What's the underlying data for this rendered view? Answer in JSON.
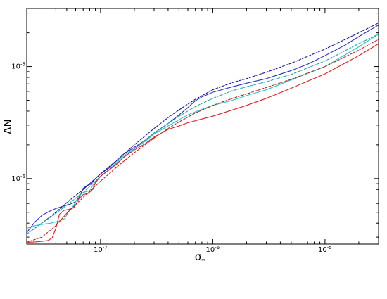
{
  "chart_data": {
    "type": "line",
    "title": "",
    "xlabel_main": "σ",
    "xlabel_sub": "*",
    "ylabel": "ΔN",
    "xscale": "log",
    "yscale": "log",
    "xlim": [
      2.2e-08,
      3e-05
    ],
    "ylim": [
      2.6e-07,
      3.3e-05
    ],
    "grid": false,
    "x_ticks": [
      {
        "value": 1e-07,
        "base": "10",
        "exp": "-7"
      },
      {
        "value": 1e-06,
        "base": "10",
        "exp": "-6"
      },
      {
        "value": 1e-05,
        "base": "10",
        "exp": "-5"
      }
    ],
    "y_ticks": [
      {
        "value": 1e-06,
        "base": "10",
        "exp": "-6"
      },
      {
        "value": 1e-05,
        "base": "10",
        "exp": "-5"
      }
    ],
    "series": [
      {
        "color": "#3030cc",
        "style": "solid",
        "points": [
          [
            2.2e-08,
            3.3e-07
          ],
          [
            2.6e-08,
            4.1e-07
          ],
          [
            3e-08,
            4.7e-07
          ],
          [
            3.5e-08,
            5.1e-07
          ],
          [
            4e-08,
            5.4e-07
          ],
          [
            4.6e-08,
            5.65e-07
          ],
          [
            5.2e-08,
            5.85e-07
          ],
          [
            5.8e-08,
            6.1e-07
          ],
          [
            6.4e-08,
            6.7e-07
          ],
          [
            7e-08,
            8.2e-07
          ],
          [
            7.6e-08,
            8.7e-07
          ],
          [
            8.2e-08,
            8.9e-07
          ],
          [
            9e-08,
            1e-06
          ],
          [
            1e-07,
            1.1e-06
          ],
          [
            1.2e-07,
            1.25e-06
          ],
          [
            1.4e-07,
            1.45e-06
          ],
          [
            1.6e-07,
            1.65e-06
          ],
          [
            2e-07,
            1.9e-06
          ],
          [
            2.5e-07,
            2.2e-06
          ],
          [
            3e-07,
            2.55e-06
          ],
          [
            4e-07,
            3.1e-06
          ],
          [
            5e-07,
            3.7e-06
          ],
          [
            6e-07,
            4.3e-06
          ],
          [
            7e-07,
            4.95e-06
          ],
          [
            8e-07,
            5.35e-06
          ],
          [
            1e-06,
            5.9e-06
          ],
          [
            1.5e-06,
            6.6e-06
          ],
          [
            2e-06,
            7.1e-06
          ],
          [
            3e-06,
            7.8e-06
          ],
          [
            5e-06,
            9.2e-06
          ],
          [
            7e-06,
            1.05e-05
          ],
          [
            1e-05,
            1.25e-05
          ],
          [
            1.5e-05,
            1.55e-05
          ],
          [
            2e-05,
            1.85e-05
          ],
          [
            3e-05,
            2.35e-05
          ]
        ]
      },
      {
        "color": "#1a1a99",
        "style": "dashed",
        "points": [
          [
            2.2e-08,
            3.2e-07
          ],
          [
            3e-08,
            4e-07
          ],
          [
            4e-08,
            5e-07
          ],
          [
            5e-08,
            6.1e-07
          ],
          [
            7e-08,
            8e-07
          ],
          [
            1e-07,
            1.1e-06
          ],
          [
            1.5e-07,
            1.55e-06
          ],
          [
            2e-07,
            2e-06
          ],
          [
            3e-07,
            2.8e-06
          ],
          [
            4e-07,
            3.5e-06
          ],
          [
            5e-07,
            4.1e-06
          ],
          [
            7e-07,
            5.1e-06
          ],
          [
            1e-06,
            6.2e-06
          ],
          [
            1.5e-06,
            7.2e-06
          ],
          [
            2e-06,
            7.8e-06
          ],
          [
            3e-06,
            8.9e-06
          ],
          [
            5e-06,
            1.07e-05
          ],
          [
            1e-05,
            1.43e-05
          ],
          [
            2e-05,
            2e-05
          ],
          [
            3e-05,
            2.45e-05
          ]
        ]
      },
      {
        "color": "#20c8c8",
        "style": "solid",
        "points": [
          [
            2.2e-08,
            3.6e-07
          ],
          [
            2.6e-08,
            3.8e-07
          ],
          [
            3e-08,
            3.9e-07
          ],
          [
            3.6e-08,
            4e-07
          ],
          [
            4.2e-08,
            4.15e-07
          ],
          [
            4.8e-08,
            4.4e-07
          ],
          [
            5.2e-08,
            5.1e-07
          ],
          [
            5.6e-08,
            5.5e-07
          ],
          [
            6e-08,
            6.2e-07
          ],
          [
            6.5e-08,
            7.2e-07
          ],
          [
            7e-08,
            7.5e-07
          ],
          [
            8e-08,
            7.8e-07
          ],
          [
            9e-08,
            9.5e-07
          ],
          [
            1e-07,
            1.05e-06
          ],
          [
            1.2e-07,
            1.2e-06
          ],
          [
            1.4e-07,
            1.4e-06
          ],
          [
            1.6e-07,
            1.6e-06
          ],
          [
            2e-07,
            1.85e-06
          ],
          [
            2.5e-07,
            2.15e-06
          ],
          [
            3e-07,
            2.5e-06
          ],
          [
            4e-07,
            2.95e-06
          ],
          [
            5e-07,
            3.35e-06
          ],
          [
            6e-07,
            3.7e-06
          ],
          [
            8e-07,
            4.15e-06
          ],
          [
            1e-06,
            4.5e-06
          ],
          [
            1.5e-06,
            5e-06
          ],
          [
            2e-06,
            5.5e-06
          ],
          [
            3e-06,
            6.2e-06
          ],
          [
            5e-06,
            7.6e-06
          ],
          [
            1e-05,
            1e-05
          ],
          [
            2e-05,
            1.5e-05
          ],
          [
            3e-05,
            1.95e-05
          ]
        ]
      },
      {
        "color": "#20a8a8",
        "style": "dashed",
        "points": [
          [
            2.2e-08,
            3.2e-07
          ],
          [
            3e-08,
            4e-07
          ],
          [
            4e-08,
            4.9e-07
          ],
          [
            5e-08,
            5.8e-07
          ],
          [
            7e-08,
            7.5e-07
          ],
          [
            1e-07,
            1.05e-06
          ],
          [
            1.5e-07,
            1.45e-06
          ],
          [
            2e-07,
            1.85e-06
          ],
          [
            3e-07,
            2.55e-06
          ],
          [
            4e-07,
            3.1e-06
          ],
          [
            5e-07,
            3.6e-06
          ],
          [
            7e-07,
            4.4e-06
          ],
          [
            1e-06,
            5.2e-06
          ],
          [
            1.5e-06,
            6.1e-06
          ],
          [
            2e-06,
            6.6e-06
          ],
          [
            3e-06,
            7.3e-06
          ],
          [
            5e-06,
            8.5e-06
          ],
          [
            1e-05,
            1.12e-05
          ],
          [
            2e-05,
            1.6e-05
          ],
          [
            3e-05,
            1.95e-05
          ]
        ]
      },
      {
        "color": "#e02020",
        "style": "solid",
        "points": [
          [
            2.2e-08,
            2.7e-07
          ],
          [
            2.6e-08,
            2.72e-07
          ],
          [
            3e-08,
            2.75e-07
          ],
          [
            3.4e-08,
            2.8e-07
          ],
          [
            3.7e-08,
            2.95e-07
          ],
          [
            4e-08,
            3.6e-07
          ],
          [
            4.3e-08,
            4.8e-07
          ],
          [
            4.7e-08,
            5.2e-07
          ],
          [
            5.2e-08,
            5.3e-07
          ],
          [
            5.8e-08,
            5.5e-07
          ],
          [
            6.4e-08,
            6.6e-07
          ],
          [
            7e-08,
            7.2e-07
          ],
          [
            7.8e-08,
            7.4e-07
          ],
          [
            8.5e-08,
            8e-07
          ],
          [
            9e-08,
            9.2e-07
          ],
          [
            1e-07,
            1.05e-06
          ],
          [
            1.2e-07,
            1.2e-06
          ],
          [
            1.4e-07,
            1.35e-06
          ],
          [
            1.6e-07,
            1.55e-06
          ],
          [
            2e-07,
            1.8e-06
          ],
          [
            2.5e-07,
            2.05e-06
          ],
          [
            3e-07,
            2.35e-06
          ],
          [
            4e-07,
            2.75e-06
          ],
          [
            5e-07,
            2.95e-06
          ],
          [
            6e-07,
            3.15e-06
          ],
          [
            8e-07,
            3.4e-06
          ],
          [
            1e-06,
            3.6e-06
          ],
          [
            1.5e-06,
            4.1e-06
          ],
          [
            2e-06,
            4.5e-06
          ],
          [
            3e-06,
            5.2e-06
          ],
          [
            5e-06,
            6.4e-06
          ],
          [
            1e-05,
            8.6e-06
          ],
          [
            2e-05,
            1.25e-05
          ],
          [
            3e-05,
            1.6e-05
          ]
        ]
      },
      {
        "color": "#c02020",
        "style": "dashed",
        "points": [
          [
            2.2e-08,
            2.7e-07
          ],
          [
            3e-08,
            3e-07
          ],
          [
            4e-08,
            3.8e-07
          ],
          [
            5e-08,
            4.9e-07
          ],
          [
            7e-08,
            6.8e-07
          ],
          [
            1e-07,
            9.5e-07
          ],
          [
            1.5e-07,
            1.35e-06
          ],
          [
            2e-07,
            1.7e-06
          ],
          [
            3e-07,
            2.3e-06
          ],
          [
            4e-07,
            2.8e-06
          ],
          [
            5e-07,
            3.2e-06
          ],
          [
            7e-07,
            3.85e-06
          ],
          [
            1e-06,
            4.5e-06
          ],
          [
            1.5e-06,
            5.2e-06
          ],
          [
            2e-06,
            5.7e-06
          ],
          [
            3e-06,
            6.5e-06
          ],
          [
            5e-06,
            7.7e-06
          ],
          [
            1e-05,
            1e-05
          ],
          [
            2e-05,
            1.4e-05
          ],
          [
            3e-05,
            1.75e-05
          ]
        ]
      }
    ]
  }
}
